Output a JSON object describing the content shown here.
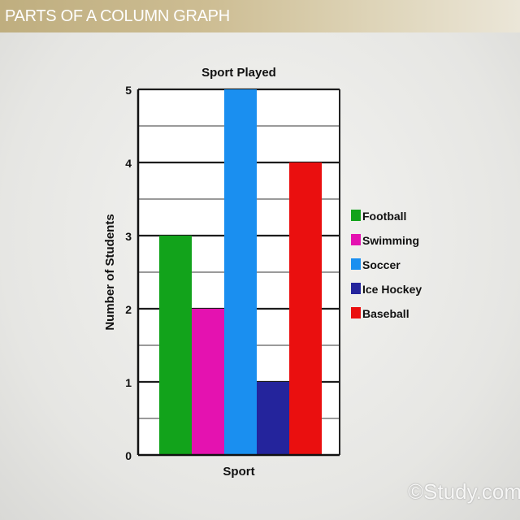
{
  "banner": {
    "title": "PARTS OF A COLUMN GRAPH"
  },
  "watermark": "©Study.com",
  "chart_data": {
    "type": "bar",
    "title": "Sport Played",
    "xlabel": "Sport",
    "ylabel": "Number of Students",
    "categories": [
      "Football",
      "Swimming",
      "Soccer",
      "Ice Hockey",
      "Baseball"
    ],
    "values": [
      3,
      2,
      5,
      1,
      4
    ],
    "colors": [
      "#12a31b",
      "#e412b0",
      "#1a8ff0",
      "#24249c",
      "#ea0f0f"
    ],
    "ylim": [
      0,
      5
    ],
    "yticks": [
      "0",
      "1",
      "2",
      "3",
      "4",
      "5"
    ],
    "grid": true,
    "legend": "right"
  }
}
